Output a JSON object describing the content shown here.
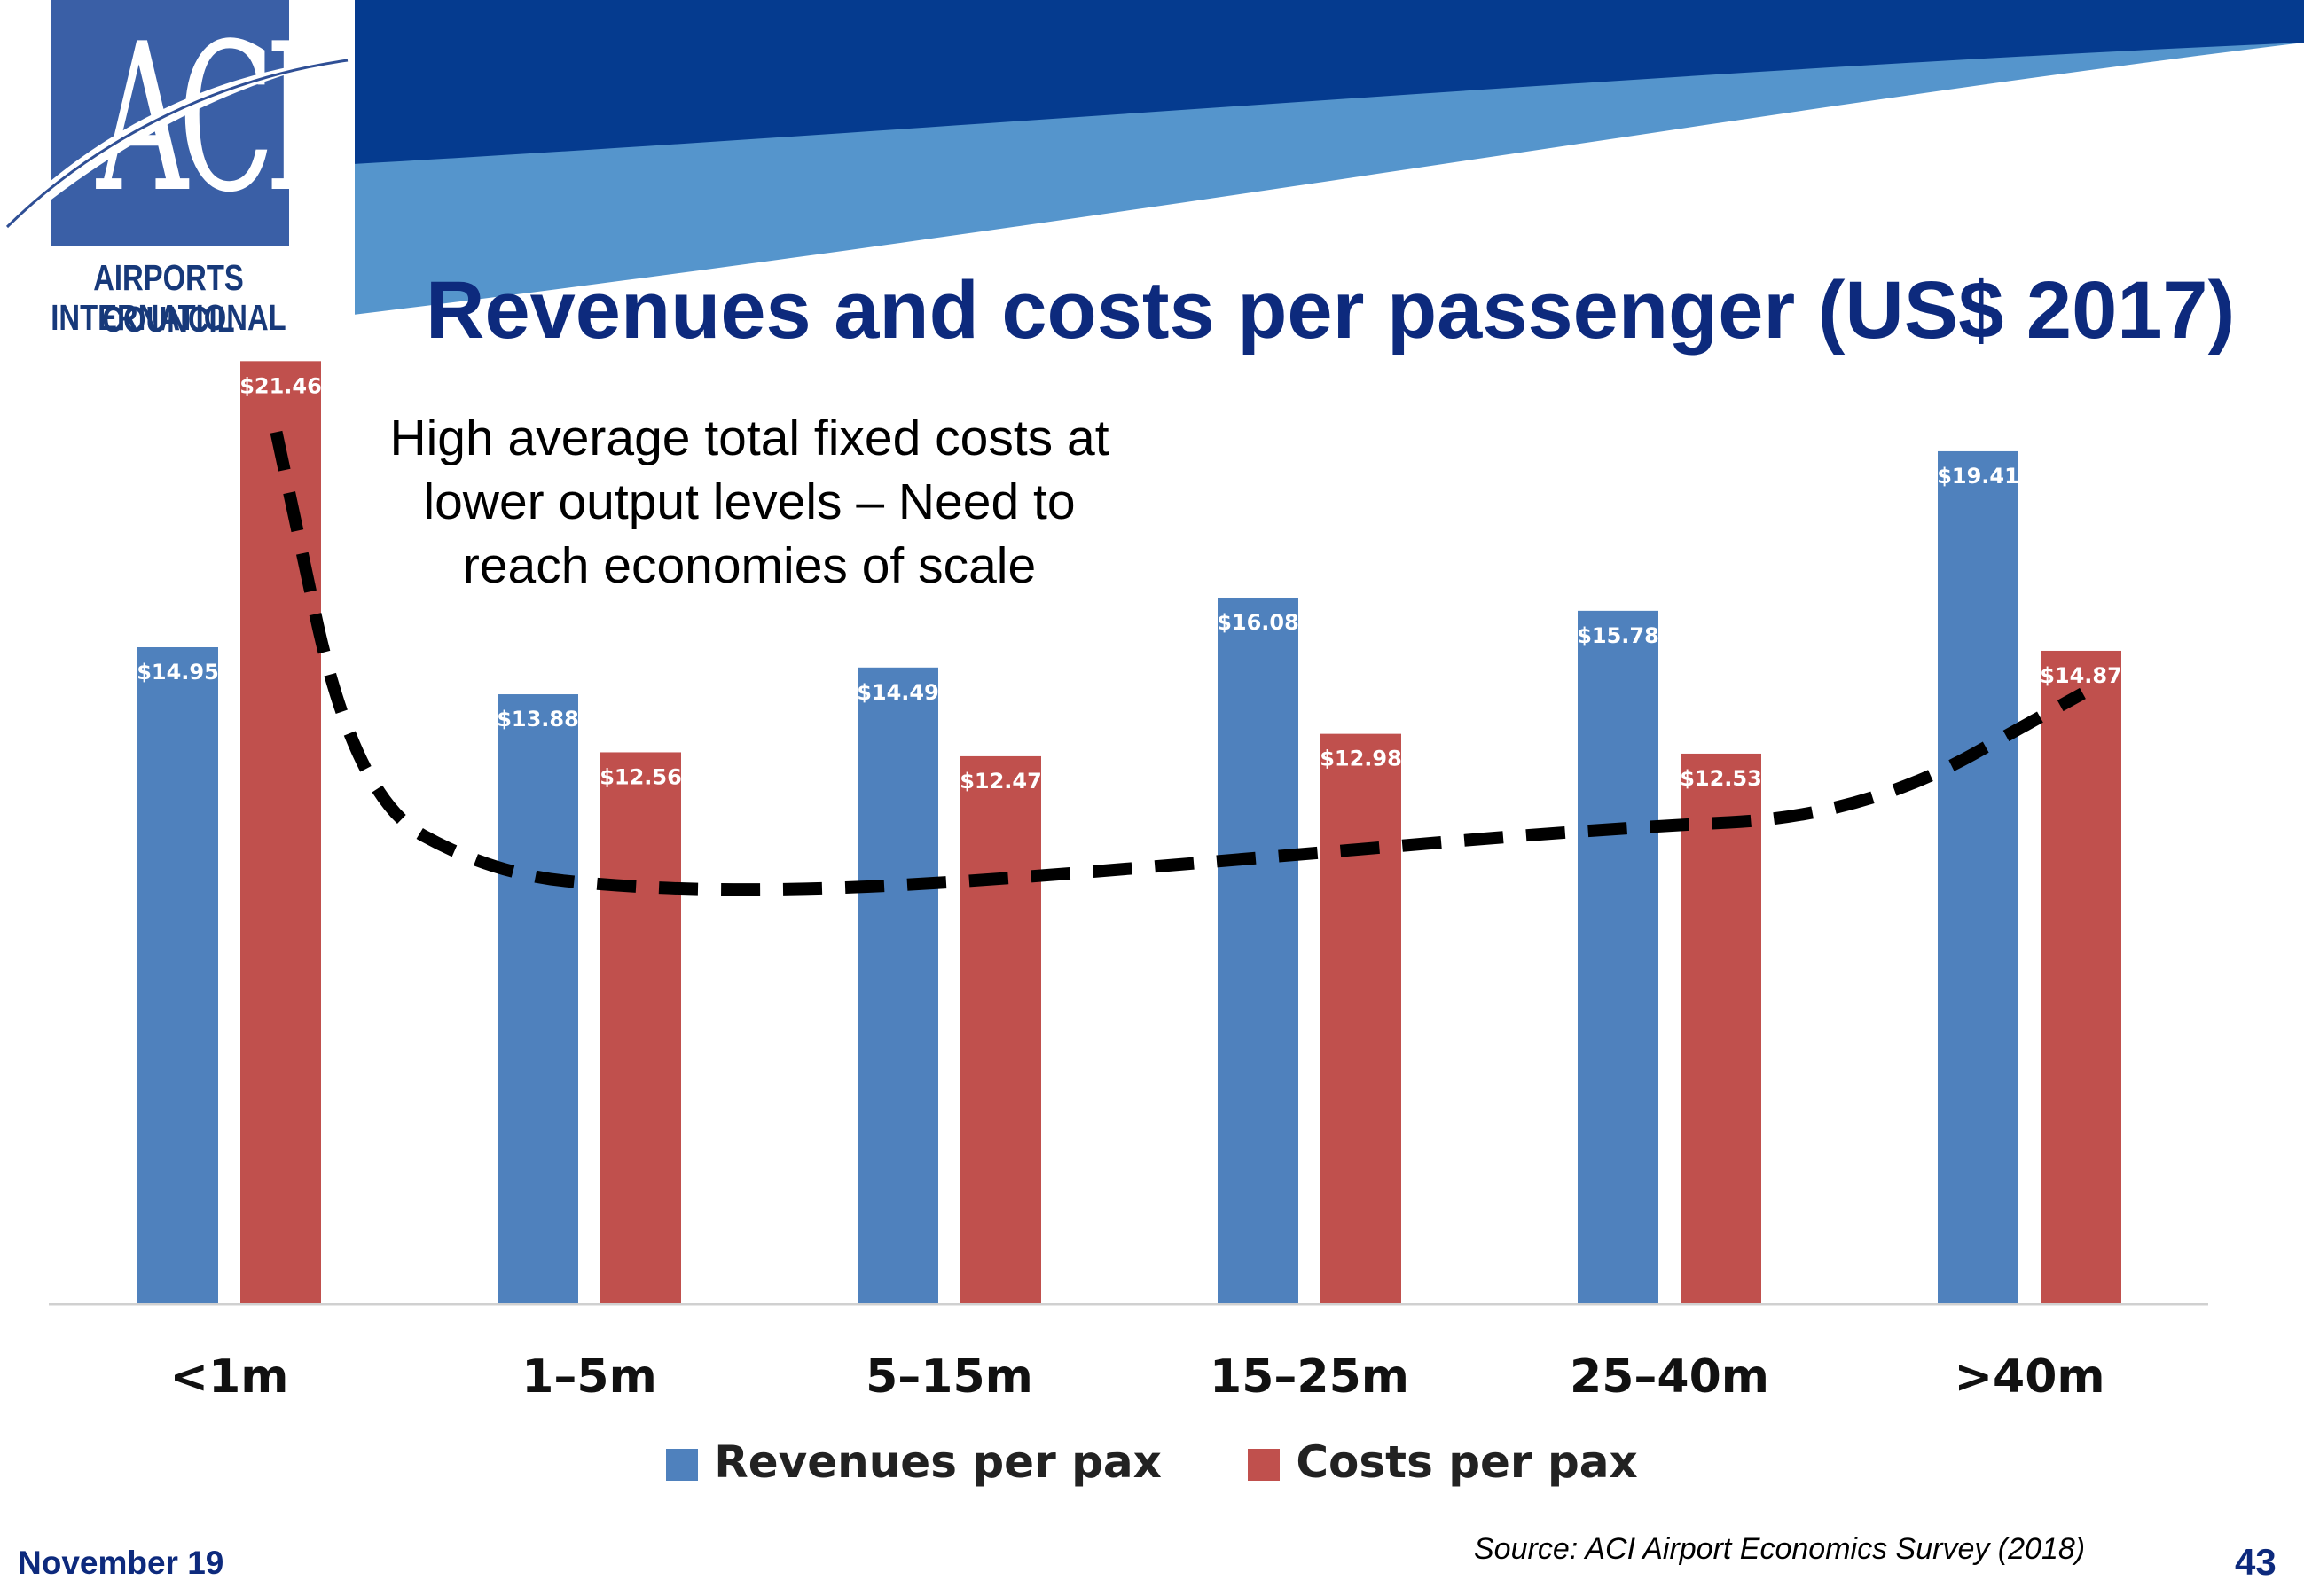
{
  "header": {
    "logo_text": "ACI",
    "org_line1": "AIRPORTS COUNCIL",
    "org_line2": "INTERNATIONAL",
    "title": "Revenues and costs per passenger (US$ 2017)"
  },
  "colors": {
    "dark_navy": "#053b8f",
    "light_blue": "#5595cc",
    "title": "#0d2a7d",
    "revenue": "#4f81bd",
    "cost": "#c0504d"
  },
  "annotation": {
    "lines": [
      "High average total fixed costs at",
      "lower output levels – Need to",
      "reach economies of scale"
    ]
  },
  "chart_data": {
    "type": "bar",
    "categories": [
      "<1m",
      "1–5m",
      "5–15m",
      "15–25m",
      "25–40m",
      ">40m"
    ],
    "series": [
      {
        "name": "Revenues per pax",
        "values": [
          14.95,
          13.88,
          14.49,
          16.08,
          15.78,
          19.41
        ],
        "labels": [
          "$14.95",
          "$13.88",
          "$14.49",
          "$16.08",
          "$15.78",
          "$19.41"
        ]
      },
      {
        "name": "Costs per pax",
        "values": [
          21.46,
          12.56,
          12.47,
          12.98,
          12.53,
          14.87
        ],
        "labels": [
          "$21.46",
          "$12.56",
          "$12.47",
          "$12.98",
          "$12.53",
          "$14.87"
        ]
      }
    ],
    "ylim": [
      0,
      23
    ],
    "grid": false,
    "legend": "bottom",
    "trend_line": {
      "style": "dashed",
      "shape": "U-shaped",
      "color": "#000000"
    }
  },
  "footer": {
    "date": "November 19",
    "source": "Source: ACI Airport Economics Survey (2018)",
    "page": "43"
  }
}
